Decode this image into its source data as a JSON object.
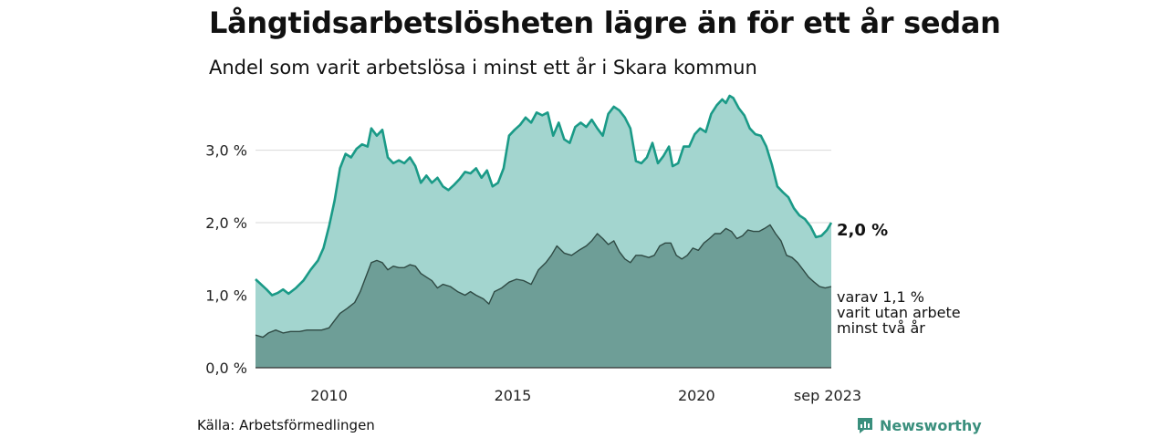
{
  "chart_data": {
    "type": "area",
    "title": "Långtidsarbetslösheten lägre än för ett år sedan",
    "subtitle": "Andel som varit arbetslösa i minst ett år i Skara kommun",
    "xlabel": "",
    "ylabel": "",
    "ylim": [
      0,
      3.8
    ],
    "xlim": [
      2008.0,
      2023.667
    ],
    "grid": true,
    "y_ticks": [
      0,
      1,
      2,
      3
    ],
    "y_tick_labels": [
      "0,0 %",
      "1,0 %",
      "2,0 %",
      "3,0 %"
    ],
    "x_ticks": [
      2010,
      2015,
      2020,
      2023.667
    ],
    "x_tick_labels": [
      "2010",
      "2015",
      "2020",
      "sep 2023"
    ],
    "series": [
      {
        "name": "Varit arbetslösa i minst ett år",
        "color": "#1a9a87",
        "fill": "#a3d5cf",
        "points": [
          [
            2008.0,
            1.22
          ],
          [
            2008.3,
            1.08
          ],
          [
            2008.45,
            1.0
          ],
          [
            2008.6,
            1.03
          ],
          [
            2008.75,
            1.08
          ],
          [
            2008.9,
            1.02
          ],
          [
            2009.1,
            1.1
          ],
          [
            2009.3,
            1.2
          ],
          [
            2009.5,
            1.35
          ],
          [
            2009.7,
            1.48
          ],
          [
            2009.85,
            1.65
          ],
          [
            2010.0,
            1.95
          ],
          [
            2010.15,
            2.3
          ],
          [
            2010.3,
            2.75
          ],
          [
            2010.45,
            2.95
          ],
          [
            2010.6,
            2.9
          ],
          [
            2010.75,
            3.02
          ],
          [
            2010.9,
            3.08
          ],
          [
            2011.05,
            3.05
          ],
          [
            2011.15,
            3.3
          ],
          [
            2011.3,
            3.2
          ],
          [
            2011.45,
            3.28
          ],
          [
            2011.6,
            2.9
          ],
          [
            2011.75,
            2.82
          ],
          [
            2011.9,
            2.86
          ],
          [
            2012.05,
            2.82
          ],
          [
            2012.2,
            2.9
          ],
          [
            2012.35,
            2.78
          ],
          [
            2012.5,
            2.55
          ],
          [
            2012.65,
            2.65
          ],
          [
            2012.8,
            2.55
          ],
          [
            2012.95,
            2.62
          ],
          [
            2013.1,
            2.5
          ],
          [
            2013.25,
            2.45
          ],
          [
            2013.4,
            2.52
          ],
          [
            2013.55,
            2.6
          ],
          [
            2013.7,
            2.7
          ],
          [
            2013.85,
            2.68
          ],
          [
            2014.0,
            2.75
          ],
          [
            2014.15,
            2.62
          ],
          [
            2014.3,
            2.72
          ],
          [
            2014.45,
            2.5
          ],
          [
            2014.6,
            2.55
          ],
          [
            2014.75,
            2.75
          ],
          [
            2014.9,
            3.2
          ],
          [
            2015.05,
            3.28
          ],
          [
            2015.2,
            3.35
          ],
          [
            2015.35,
            3.45
          ],
          [
            2015.5,
            3.38
          ],
          [
            2015.65,
            3.52
          ],
          [
            2015.8,
            3.48
          ],
          [
            2015.95,
            3.52
          ],
          [
            2016.1,
            3.2
          ],
          [
            2016.25,
            3.38
          ],
          [
            2016.4,
            3.15
          ],
          [
            2016.55,
            3.1
          ],
          [
            2016.7,
            3.32
          ],
          [
            2016.85,
            3.38
          ],
          [
            2017.0,
            3.32
          ],
          [
            2017.15,
            3.42
          ],
          [
            2017.3,
            3.3
          ],
          [
            2017.45,
            3.2
          ],
          [
            2017.6,
            3.5
          ],
          [
            2017.75,
            3.6
          ],
          [
            2017.9,
            3.55
          ],
          [
            2018.05,
            3.45
          ],
          [
            2018.2,
            3.3
          ],
          [
            2018.35,
            2.85
          ],
          [
            2018.5,
            2.82
          ],
          [
            2018.65,
            2.9
          ],
          [
            2018.8,
            3.1
          ],
          [
            2018.95,
            2.82
          ],
          [
            2019.1,
            2.92
          ],
          [
            2019.25,
            3.05
          ],
          [
            2019.35,
            2.78
          ],
          [
            2019.5,
            2.82
          ],
          [
            2019.65,
            3.05
          ],
          [
            2019.8,
            3.05
          ],
          [
            2019.95,
            3.22
          ],
          [
            2020.1,
            3.3
          ],
          [
            2020.25,
            3.25
          ],
          [
            2020.4,
            3.5
          ],
          [
            2020.55,
            3.62
          ],
          [
            2020.7,
            3.7
          ],
          [
            2020.8,
            3.65
          ],
          [
            2020.9,
            3.75
          ],
          [
            2021.0,
            3.72
          ],
          [
            2021.15,
            3.58
          ],
          [
            2021.3,
            3.48
          ],
          [
            2021.45,
            3.3
          ],
          [
            2021.6,
            3.22
          ],
          [
            2021.75,
            3.2
          ],
          [
            2021.9,
            3.05
          ],
          [
            2022.05,
            2.8
          ],
          [
            2022.2,
            2.5
          ],
          [
            2022.35,
            2.42
          ],
          [
            2022.5,
            2.35
          ],
          [
            2022.65,
            2.2
          ],
          [
            2022.8,
            2.1
          ],
          [
            2022.95,
            2.05
          ],
          [
            2023.1,
            1.95
          ],
          [
            2023.25,
            1.8
          ],
          [
            2023.4,
            1.82
          ],
          [
            2023.55,
            1.9
          ],
          [
            2023.667,
            2.0
          ]
        ]
      },
      {
        "name": "varav varit utan arbete minst två år",
        "color": "#2f4a44",
        "fill": "#6e9e97",
        "points": [
          [
            2008.0,
            0.45
          ],
          [
            2008.2,
            0.42
          ],
          [
            2008.35,
            0.48
          ],
          [
            2008.55,
            0.52
          ],
          [
            2008.75,
            0.48
          ],
          [
            2008.95,
            0.5
          ],
          [
            2009.2,
            0.5
          ],
          [
            2009.4,
            0.52
          ],
          [
            2009.6,
            0.52
          ],
          [
            2009.8,
            0.52
          ],
          [
            2010.0,
            0.55
          ],
          [
            2010.15,
            0.65
          ],
          [
            2010.3,
            0.75
          ],
          [
            2010.5,
            0.82
          ],
          [
            2010.7,
            0.9
          ],
          [
            2010.85,
            1.05
          ],
          [
            2011.0,
            1.25
          ],
          [
            2011.15,
            1.45
          ],
          [
            2011.3,
            1.48
          ],
          [
            2011.45,
            1.45
          ],
          [
            2011.6,
            1.35
          ],
          [
            2011.75,
            1.4
          ],
          [
            2011.9,
            1.38
          ],
          [
            2012.05,
            1.38
          ],
          [
            2012.2,
            1.42
          ],
          [
            2012.35,
            1.4
          ],
          [
            2012.5,
            1.3
          ],
          [
            2012.65,
            1.25
          ],
          [
            2012.8,
            1.2
          ],
          [
            2012.95,
            1.1
          ],
          [
            2013.1,
            1.15
          ],
          [
            2013.3,
            1.12
          ],
          [
            2013.5,
            1.05
          ],
          [
            2013.7,
            1.0
          ],
          [
            2013.85,
            1.05
          ],
          [
            2014.0,
            1.0
          ],
          [
            2014.2,
            0.95
          ],
          [
            2014.35,
            0.88
          ],
          [
            2014.5,
            1.05
          ],
          [
            2014.7,
            1.1
          ],
          [
            2014.9,
            1.18
          ],
          [
            2015.1,
            1.22
          ],
          [
            2015.3,
            1.2
          ],
          [
            2015.5,
            1.15
          ],
          [
            2015.7,
            1.35
          ],
          [
            2015.9,
            1.45
          ],
          [
            2016.05,
            1.55
          ],
          [
            2016.2,
            1.68
          ],
          [
            2016.4,
            1.58
          ],
          [
            2016.6,
            1.55
          ],
          [
            2016.8,
            1.62
          ],
          [
            2017.0,
            1.68
          ],
          [
            2017.15,
            1.75
          ],
          [
            2017.3,
            1.85
          ],
          [
            2017.45,
            1.78
          ],
          [
            2017.6,
            1.7
          ],
          [
            2017.75,
            1.75
          ],
          [
            2017.9,
            1.6
          ],
          [
            2018.05,
            1.5
          ],
          [
            2018.2,
            1.45
          ],
          [
            2018.35,
            1.55
          ],
          [
            2018.5,
            1.55
          ],
          [
            2018.7,
            1.52
          ],
          [
            2018.85,
            1.55
          ],
          [
            2019.0,
            1.68
          ],
          [
            2019.15,
            1.72
          ],
          [
            2019.3,
            1.72
          ],
          [
            2019.45,
            1.55
          ],
          [
            2019.6,
            1.5
          ],
          [
            2019.75,
            1.55
          ],
          [
            2019.9,
            1.65
          ],
          [
            2020.05,
            1.62
          ],
          [
            2020.2,
            1.72
          ],
          [
            2020.35,
            1.78
          ],
          [
            2020.5,
            1.85
          ],
          [
            2020.65,
            1.85
          ],
          [
            2020.8,
            1.92
          ],
          [
            2020.95,
            1.88
          ],
          [
            2021.1,
            1.78
          ],
          [
            2021.25,
            1.82
          ],
          [
            2021.4,
            1.9
          ],
          [
            2021.55,
            1.88
          ],
          [
            2021.7,
            1.88
          ],
          [
            2021.85,
            1.92
          ],
          [
            2022.0,
            1.97
          ],
          [
            2022.15,
            1.85
          ],
          [
            2022.3,
            1.75
          ],
          [
            2022.45,
            1.55
          ],
          [
            2022.6,
            1.52
          ],
          [
            2022.75,
            1.45
          ],
          [
            2022.9,
            1.35
          ],
          [
            2023.05,
            1.25
          ],
          [
            2023.2,
            1.18
          ],
          [
            2023.35,
            1.12
          ],
          [
            2023.5,
            1.1
          ],
          [
            2023.667,
            1.12
          ]
        ]
      }
    ],
    "annotations": {
      "series1_end": "2,0 %",
      "series2_end": [
        "varav 1,1 %",
        "varit utan arbete",
        "minst två år"
      ]
    }
  },
  "footer": {
    "source": "Källa: Arbetsförmedlingen",
    "brand": "Newsworthy",
    "brand_icon": "newsworthy-logo-icon",
    "brand_color": "#3a8f7d"
  }
}
